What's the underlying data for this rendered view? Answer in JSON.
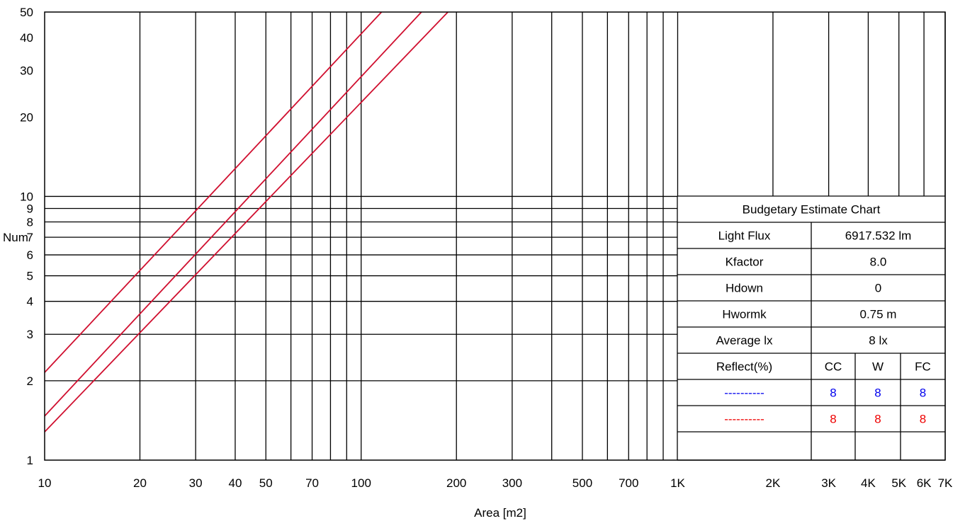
{
  "chart_data": {
    "type": "line",
    "title": "",
    "xlabel": "Area [m2]",
    "ylabel": "Num",
    "xscale": "log",
    "yscale": "log",
    "xlim": [
      10,
      7000
    ],
    "ylim": [
      1,
      50
    ],
    "x_ticks": [
      {
        "value": 10,
        "label": "10"
      },
      {
        "value": 20,
        "label": "20"
      },
      {
        "value": 30,
        "label": "30"
      },
      {
        "value": 40,
        "label": "40"
      },
      {
        "value": 50,
        "label": "50"
      },
      {
        "value": 70,
        "label": "70"
      },
      {
        "value": 100,
        "label": "100"
      },
      {
        "value": 200,
        "label": "200"
      },
      {
        "value": 300,
        "label": "300"
      },
      {
        "value": 500,
        "label": "500"
      },
      {
        "value": 700,
        "label": "700"
      },
      {
        "value": 1000,
        "label": "1K"
      },
      {
        "value": 2000,
        "label": "2K"
      },
      {
        "value": 3000,
        "label": "3K"
      },
      {
        "value": 4000,
        "label": "4K"
      },
      {
        "value": 5000,
        "label": "5K"
      },
      {
        "value": 6000,
        "label": "6K"
      },
      {
        "value": 7000,
        "label": "7K"
      }
    ],
    "x_grid": [
      20,
      30,
      40,
      50,
      60,
      70,
      80,
      90,
      100,
      200,
      300,
      400,
      500,
      600,
      700,
      800,
      900,
      1000,
      2000,
      3000,
      4000,
      5000,
      6000,
      7000
    ],
    "y_ticks": [
      {
        "value": 1,
        "label": "1"
      },
      {
        "value": 2,
        "label": "2"
      },
      {
        "value": 3,
        "label": "3"
      },
      {
        "value": 4,
        "label": "4"
      },
      {
        "value": 5,
        "label": "5"
      },
      {
        "value": 6,
        "label": "6"
      },
      {
        "value": 7,
        "label": "7"
      },
      {
        "value": 8,
        "label": "8"
      },
      {
        "value": 9,
        "label": "9"
      },
      {
        "value": 10,
        "label": "10"
      },
      {
        "value": 20,
        "label": "20"
      },
      {
        "value": 30,
        "label": "30"
      },
      {
        "value": 40,
        "label": "40"
      },
      {
        "value": 50,
        "label": "50"
      }
    ],
    "y_grid": [
      2,
      3,
      4,
      5,
      6,
      7,
      8,
      9,
      10
    ],
    "grid": true,
    "series_color": "#d01030",
    "series": [
      {
        "x": [
          10,
          116
        ],
        "y": [
          2.15,
          50
        ]
      },
      {
        "x": [
          10,
          155
        ],
        "y": [
          1.47,
          50
        ]
      },
      {
        "x": [
          10,
          188
        ],
        "y": [
          1.28,
          50
        ]
      }
    ]
  },
  "info_table": {
    "title": "Budgetary Estimate Chart",
    "rows": [
      {
        "label": "Light Flux",
        "value": "6917.532 lm"
      },
      {
        "label": "Kfactor",
        "value": "8.0"
      },
      {
        "label": "Hdown",
        "value": "0"
      },
      {
        "label": "Hwormk",
        "value": "0.75 m"
      },
      {
        "label": "Average lx",
        "value": "8 lx"
      }
    ],
    "reflect_header": {
      "label": "Reflect(%)",
      "cc": "CC",
      "w": "W",
      "fc": "FC"
    },
    "reflect_rows": [
      {
        "legend": "----------",
        "color": "#0000ee",
        "cc": "8",
        "w": "8",
        "fc": "8"
      },
      {
        "legend": "----------",
        "color": "#ee0000",
        "cc": "8",
        "w": "8",
        "fc": "8"
      }
    ]
  }
}
